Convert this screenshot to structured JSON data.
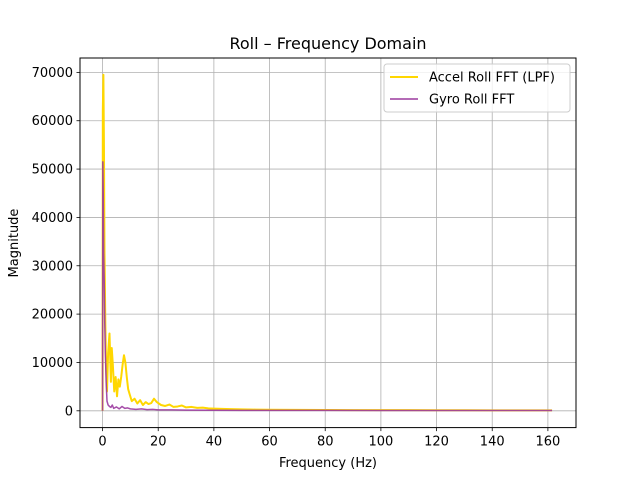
{
  "chart_data": {
    "type": "line",
    "title": "Roll – Frequency Domain",
    "xlabel": "Frequency (Hz)",
    "ylabel": "Magnitude",
    "xlim": [
      -8.1,
      170.1
    ],
    "ylim": [
      -3475,
      72975
    ],
    "x_ticks": [
      0,
      20,
      40,
      60,
      80,
      100,
      120,
      140,
      160
    ],
    "y_ticks": [
      0,
      10000,
      20000,
      30000,
      40000,
      50000,
      60000,
      70000
    ],
    "grid": true,
    "legend_position": "upper right",
    "series": [
      {
        "name": "Accel Roll FFT (LPF)",
        "color": "#FFD700",
        "x": [
          0,
          0.1,
          0.3,
          0.5,
          0.7,
          1.0,
          1.3,
          1.6,
          2.0,
          2.5,
          3.0,
          3.3,
          3.7,
          4.2,
          4.7,
          5.2,
          5.7,
          6.2,
          6.7,
          7.2,
          7.7,
          8.2,
          8.7,
          9.2,
          9.7,
          10.5,
          11.5,
          12.5,
          13.5,
          14.5,
          15.5,
          16.5,
          17.5,
          18.5,
          19.5,
          21,
          22.5,
          24,
          25.5,
          27,
          28.5,
          30,
          32,
          34,
          36,
          38,
          40,
          43,
          46,
          50,
          55,
          60,
          70,
          80,
          90,
          100,
          110,
          120,
          130,
          140,
          150,
          161.5
        ],
        "values": [
          0,
          62000,
          69500,
          55000,
          33000,
          18000,
          9000,
          4000,
          12000,
          16000,
          6000,
          13000,
          9500,
          4000,
          7000,
          3000,
          6500,
          5000,
          7000,
          9500,
          11500,
          10000,
          7000,
          4500,
          3500,
          2000,
          2500,
          1500,
          2200,
          1200,
          1800,
          1400,
          1600,
          2500,
          1800,
          1200,
          1000,
          1300,
          800,
          900,
          1100,
          700,
          800,
          600,
          650,
          500,
          450,
          400,
          350,
          300,
          250,
          220,
          180,
          160,
          150,
          140,
          130,
          120,
          110,
          100,
          90,
          80
        ]
      },
      {
        "name": "Gyro Roll FFT",
        "color": "#9B3A9E",
        "x": [
          0,
          0.1,
          0.25,
          0.4,
          0.6,
          0.8,
          1.0,
          1.3,
          1.6,
          2.0,
          2.5,
          3.0,
          3.5,
          4.0,
          5.0,
          6.0,
          7.0,
          8.0,
          9.0,
          10.0,
          12,
          14,
          16,
          18,
          20,
          25,
          30,
          40,
          50,
          60,
          80,
          100,
          120,
          140,
          161.5
        ],
        "values": [
          0,
          51500,
          45000,
          32500,
          27000,
          18000,
          12000,
          6000,
          2000,
          1200,
          900,
          700,
          1200,
          500,
          800,
          400,
          900,
          500,
          600,
          400,
          300,
          400,
          250,
          300,
          200,
          180,
          150,
          120,
          100,
          90,
          80,
          70,
          60,
          55,
          50
        ]
      }
    ]
  }
}
